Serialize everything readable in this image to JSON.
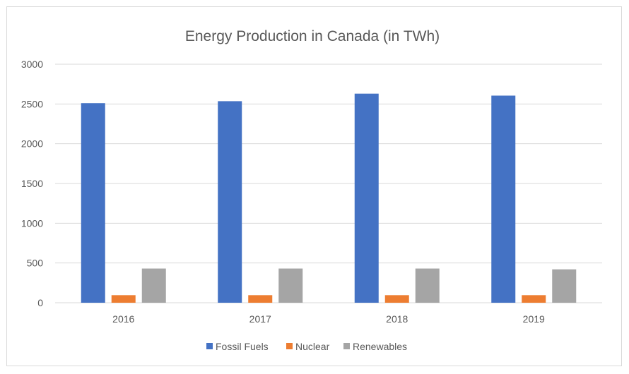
{
  "chart_data": {
    "type": "bar",
    "title": "Energy Production in Canada (in TWh)",
    "xlabel": "",
    "ylabel": "",
    "categories": [
      "2016",
      "2017",
      "2018",
      "2019"
    ],
    "series": [
      {
        "name": "Fossil Fuels",
        "color": "#4472c4",
        "values": [
          2510,
          2535,
          2630,
          2605
        ]
      },
      {
        "name": "Nuclear",
        "color": "#ed7d31",
        "values": [
          95,
          95,
          95,
          95
        ]
      },
      {
        "name": "Renewables",
        "color": "#a5a5a5",
        "values": [
          430,
          430,
          430,
          420
        ]
      }
    ],
    "ylim": [
      0,
      3000
    ],
    "yticks": [
      "0",
      "500",
      "1000",
      "1500",
      "2000",
      "2500",
      "3000"
    ],
    "grid": true,
    "legend": "bottom"
  }
}
